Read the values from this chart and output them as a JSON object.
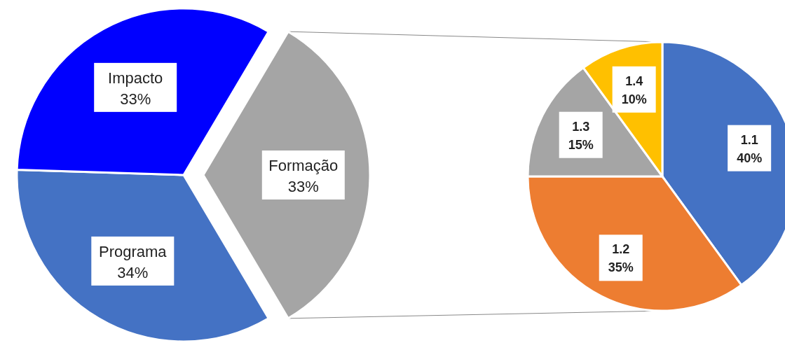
{
  "chart_data": [
    {
      "type": "pie",
      "categories": [
        "Formação",
        "Programa",
        "Impacto"
      ],
      "values": [
        33,
        34,
        33
      ],
      "colors": [
        "#a5a5a5",
        "#4472c4",
        "#0000ff"
      ],
      "value_labels": [
        "33%",
        "34%",
        "33%"
      ]
    },
    {
      "type": "pie",
      "categories": [
        "1.1",
        "1.2",
        "1.3",
        "1.4"
      ],
      "values": [
        40,
        35,
        15,
        10
      ],
      "colors": [
        "#4472c4",
        "#ed7d31",
        "#a5a5a5",
        "#ffc000"
      ],
      "value_labels": [
        "40%",
        "35%",
        "15%",
        "10%"
      ]
    }
  ]
}
